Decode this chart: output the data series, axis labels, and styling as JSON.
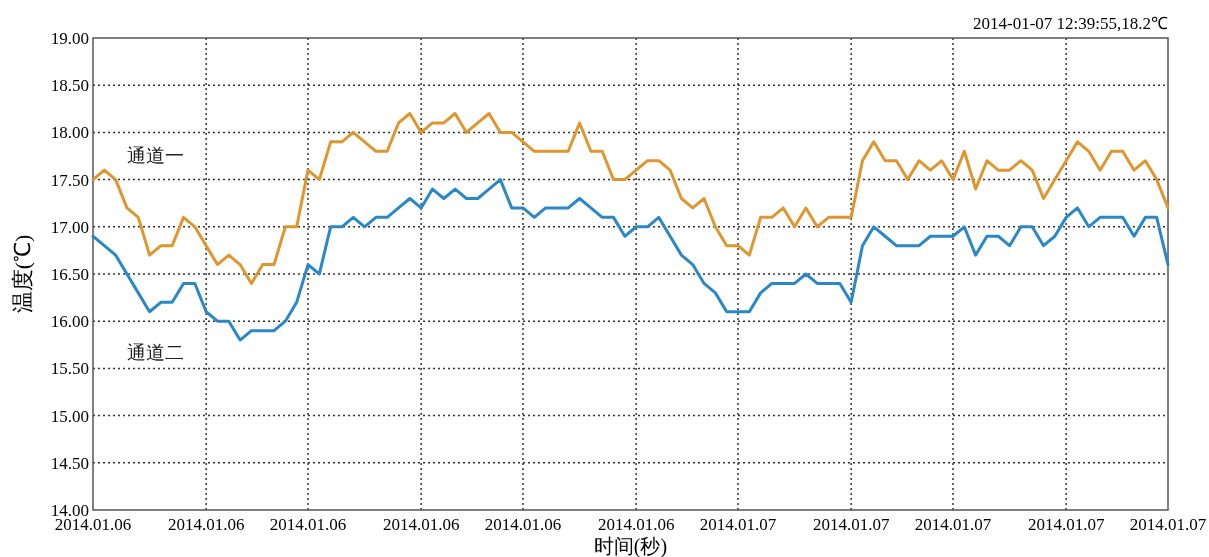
{
  "chart_data": {
    "type": "line",
    "ylabel": "温度(℃)",
    "xlabel": "时间(秒)",
    "annotations": [
      "2014-01-07  12:39:55,18.2℃"
    ],
    "categories": [
      "2014.01.06",
      null,
      null,
      null,
      null,
      null,
      null,
      null,
      null,
      null,
      "2014.01.06",
      null,
      null,
      null,
      null,
      null,
      null,
      null,
      null,
      "2014.01.06",
      null,
      null,
      null,
      null,
      null,
      null,
      null,
      null,
      null,
      "2014.01.06",
      null,
      null,
      null,
      null,
      null,
      null,
      null,
      null,
      "2014.01.06",
      null,
      null,
      null,
      null,
      null,
      null,
      null,
      null,
      null,
      "2014.01.06",
      null,
      null,
      null,
      null,
      null,
      null,
      null,
      null,
      "2014.01.07",
      null,
      null,
      null,
      null,
      null,
      null,
      null,
      null,
      null,
      "2014.01.07",
      null,
      null,
      null,
      null,
      null,
      null,
      null,
      null,
      "2014.01.07",
      null,
      null,
      null,
      null,
      null,
      null,
      null,
      null,
      null,
      "2014.01.07",
      null,
      null,
      null,
      null,
      null,
      null,
      null,
      null,
      "2014.01.07"
    ],
    "ylim": [
      14,
      19
    ],
    "yticks": [
      {
        "value": 14,
        "label": "14.00"
      },
      {
        "value": 14.5,
        "label": "14.50"
      },
      {
        "value": 15,
        "label": "15.00"
      },
      {
        "value": 15.5,
        "label": "15.50"
      },
      {
        "value": 16,
        "label": "16.00"
      },
      {
        "value": 16.5,
        "label": "16.50"
      },
      {
        "value": 17,
        "label": "17.00"
      },
      {
        "value": 17.5,
        "label": "17.50"
      },
      {
        "value": 18,
        "label": "18.00"
      },
      {
        "value": 18.5,
        "label": "18.50"
      },
      {
        "value": 19,
        "label": "19.00"
      }
    ],
    "grid": true,
    "line_style": "solid",
    "series": [
      {
        "name": "通道一",
        "color": "#e0962e",
        "values": [
          17.5,
          17.6,
          17.5,
          17.2,
          17.1,
          16.7,
          16.8,
          16.8,
          17.1,
          17.0,
          16.8,
          16.6,
          16.7,
          16.6,
          16.4,
          16.6,
          16.6,
          17.0,
          17.0,
          17.6,
          17.5,
          17.9,
          17.9,
          18.0,
          17.9,
          17.8,
          17.8,
          18.1,
          18.2,
          18.0,
          18.1,
          18.1,
          18.2,
          18.0,
          18.1,
          18.2,
          18.0,
          18.0,
          17.9,
          17.8,
          17.8,
          17.8,
          17.8,
          18.1,
          17.8,
          17.8,
          17.5,
          17.5,
          17.6,
          17.7,
          17.7,
          17.6,
          17.3,
          17.2,
          17.3,
          17.0,
          16.8,
          16.8,
          16.7,
          17.1,
          17.1,
          17.2,
          17.0,
          17.2,
          17.0,
          17.1,
          17.1,
          17.1,
          17.7,
          17.9,
          17.7,
          17.7,
          17.5,
          17.7,
          17.6,
          17.7,
          17.5,
          17.8,
          17.4,
          17.7,
          17.6,
          17.6,
          17.7,
          17.6,
          17.3,
          17.5,
          17.7,
          17.9,
          17.8,
          17.6,
          17.8,
          17.8,
          17.6,
          17.7,
          17.5,
          17.2
        ]
      },
      {
        "name": "通道二",
        "color": "#2a87c8",
        "values": [
          16.9,
          16.8,
          16.7,
          16.5,
          16.3,
          16.1,
          16.2,
          16.2,
          16.4,
          16.4,
          16.1,
          16.0,
          16.0,
          15.8,
          15.9,
          15.9,
          15.9,
          16.0,
          16.2,
          16.6,
          16.5,
          17.0,
          17.0,
          17.1,
          17.0,
          17.1,
          17.1,
          17.2,
          17.3,
          17.2,
          17.4,
          17.3,
          17.4,
          17.3,
          17.3,
          17.4,
          17.5,
          17.2,
          17.2,
          17.1,
          17.2,
          17.2,
          17.2,
          17.3,
          17.2,
          17.1,
          17.1,
          16.9,
          17.0,
          17.0,
          17.1,
          16.9,
          16.7,
          16.6,
          16.4,
          16.3,
          16.1,
          16.1,
          16.1,
          16.3,
          16.4,
          16.4,
          16.4,
          16.5,
          16.4,
          16.4,
          16.4,
          16.2,
          16.8,
          17.0,
          16.9,
          16.8,
          16.8,
          16.8,
          16.9,
          16.9,
          16.9,
          17.0,
          16.7,
          16.9,
          16.9,
          16.8,
          17.0,
          17.0,
          16.8,
          16.9,
          17.1,
          17.2,
          17.0,
          17.1,
          17.1,
          17.1,
          16.9,
          17.1,
          17.1,
          16.6
        ]
      }
    ]
  }
}
